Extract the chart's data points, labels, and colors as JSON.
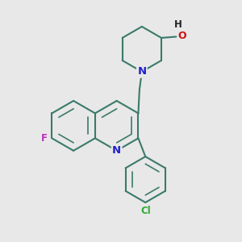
{
  "bg_color": "#e8e8e8",
  "bond_color": "#3a7a6a",
  "n_color": "#2020cc",
  "o_color": "#cc1111",
  "f_color": "#bb33bb",
  "cl_color": "#33aa33",
  "lw": 1.5,
  "lw_inner": 1.2,
  "fs": 8.5,
  "figsize": [
    3.0,
    3.0
  ],
  "dpi": 100,
  "xlim": [
    0,
    10
  ],
  "ylim": [
    0,
    10
  ]
}
